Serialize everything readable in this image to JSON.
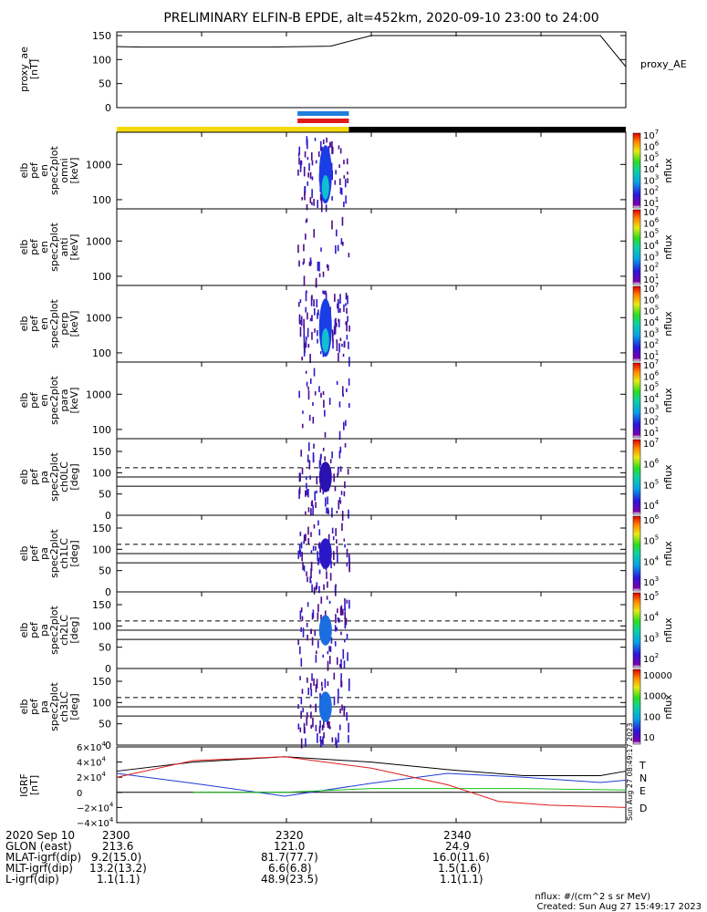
{
  "title": "PRELIMINARY ELFIN-B EPDE, alt=452km, 2020-09-10 23:00 to 24:00",
  "colors": {
    "sci_zone": "#f5d90a",
    "night": "#000000",
    "ascending": "#1f7fdc",
    "descending": "#e01b1b",
    "T": "#000000",
    "N": "#1f3bd6",
    "E": "#16c216",
    "D": "#e01b1b"
  },
  "chart_data": [
    {
      "type": "line",
      "name": "proxy_ae",
      "ylabel": [
        "proxy_ae",
        "[nT]"
      ],
      "ylim": [
        0,
        150
      ],
      "yticks": [
        "150",
        "100",
        "50",
        "0"
      ],
      "legend": "proxy_AE",
      "x": [
        23.0,
        23.05,
        23.15,
        23.3,
        23.42,
        23.5,
        23.65,
        23.8,
        23.88,
        23.95,
        24.0
      ],
      "values": [
        127,
        126,
        126,
        126,
        128,
        150,
        150,
        150,
        150,
        150,
        85
      ]
    },
    {
      "type": "heatmap",
      "name": "pef_en_spec2plot_omni",
      "ylabel": [
        "elb",
        "pef",
        "en",
        "spec2plot",
        "omni",
        "[keV]"
      ],
      "yticks": [
        "1000",
        "100"
      ],
      "colorbar_label": "nflux",
      "colorbar_ticks": [
        "10^1",
        "10^2",
        "10^3",
        "10^4",
        "10^5",
        "10^6",
        "10^7"
      ]
    },
    {
      "type": "heatmap",
      "name": "pef_en_spec2plot_anti",
      "ylabel": [
        "elb",
        "pef",
        "en",
        "spec2plot",
        "anti",
        "[keV]"
      ],
      "yticks": [
        "1000",
        "100"
      ],
      "colorbar_label": "nflux",
      "colorbar_ticks": [
        "10^1",
        "10^2",
        "10^3",
        "10^4",
        "10^5",
        "10^6",
        "10^7"
      ]
    },
    {
      "type": "heatmap",
      "name": "pef_en_spec2plot_perp",
      "ylabel": [
        "elb",
        "pef",
        "en",
        "spec2plot",
        "perp",
        "[keV]"
      ],
      "yticks": [
        "1000",
        "100"
      ],
      "colorbar_label": "nflux",
      "colorbar_ticks": [
        "10^1",
        "10^2",
        "10^3",
        "10^4",
        "10^5",
        "10^6",
        "10^7"
      ]
    },
    {
      "type": "heatmap",
      "name": "pef_en_spec2plot_para",
      "ylabel": [
        "elb",
        "pef",
        "en",
        "spec2plot",
        "para",
        "[keV]"
      ],
      "yticks": [
        "1000",
        "100"
      ],
      "colorbar_label": "nflux",
      "colorbar_ticks": [
        "10^1",
        "10^2",
        "10^3",
        "10^4",
        "10^5",
        "10^6",
        "10^7"
      ]
    },
    {
      "type": "heatmap",
      "name": "pef_pa_spec2plot_ch0LC",
      "ylabel": [
        "elb",
        "pef",
        "pa",
        "spec2plot",
        "ch0LC",
        "[deg]"
      ],
      "yticks": [
        "150",
        "100",
        "50",
        "0"
      ],
      "ylim": [
        0,
        180
      ],
      "colorbar_label": "nflux",
      "colorbar_ticks": [
        "10^4",
        "10^5",
        "10^6",
        "10^7"
      ]
    },
    {
      "type": "heatmap",
      "name": "pef_pa_spec2plot_ch1LC",
      "ylabel": [
        "elb",
        "pef",
        "pa",
        "spec2plot",
        "ch1LC",
        "[deg]"
      ],
      "yticks": [
        "150",
        "100",
        "50",
        "0"
      ],
      "ylim": [
        0,
        180
      ],
      "colorbar_label": "nflux",
      "colorbar_ticks": [
        "10^3",
        "10^4",
        "10^5",
        "10^6"
      ]
    },
    {
      "type": "heatmap",
      "name": "pef_pa_spec2plot_ch2LC",
      "ylabel": [
        "elb",
        "pef",
        "pa",
        "spec2plot",
        "ch2LC",
        "[deg]"
      ],
      "yticks": [
        "150",
        "100",
        "50",
        "0"
      ],
      "ylim": [
        0,
        180
      ],
      "colorbar_label": "nflux",
      "colorbar_ticks": [
        "10^2",
        "10^3",
        "10^4",
        "10^5"
      ]
    },
    {
      "type": "heatmap",
      "name": "pef_pa_spec2plot_ch3LC",
      "ylabel": [
        "elb",
        "pef",
        "pa",
        "spec2plot",
        "ch3LC",
        "[deg]"
      ],
      "yticks": [
        "150",
        "100",
        "50",
        "0"
      ],
      "ylim": [
        0,
        180
      ],
      "colorbar_label": "nflux",
      "colorbar_ticks": [
        "10000",
        "1000",
        "100",
        "10"
      ]
    },
    {
      "type": "line",
      "name": "IGRF",
      "ylabel": [
        "IGRF",
        "[nT]"
      ],
      "ylim": [
        -40000,
        60000
      ],
      "yticks": [
        "6×10^4",
        "4×10^4",
        "2×10^4",
        "0",
        "−2×10^4",
        "−4×10^4"
      ],
      "series": [
        {
          "name": "T",
          "x": [
            23.0,
            23.15,
            23.33,
            23.5,
            23.65,
            23.8,
            23.95,
            24.0
          ],
          "values": [
            28000,
            40000,
            47000,
            40000,
            30000,
            22000,
            22000,
            28000
          ]
        },
        {
          "name": "N",
          "x": [
            23.0,
            23.15,
            23.33,
            23.5,
            23.65,
            23.8,
            23.95,
            24.0
          ],
          "values": [
            25000,
            12000,
            -5000,
            12000,
            25000,
            20000,
            13000,
            16000
          ]
        },
        {
          "name": "E",
          "x": [
            23.15,
            23.33,
            23.5,
            23.65,
            23.8,
            24.0
          ],
          "values": [
            0,
            0,
            5000,
            5000,
            5000,
            3000
          ]
        },
        {
          "name": "D",
          "x": [
            23.0,
            23.15,
            23.33,
            23.5,
            23.65,
            23.75,
            23.85,
            24.0
          ],
          "values": [
            20000,
            42000,
            47000,
            32000,
            10000,
            -12000,
            -17000,
            -20000
          ]
        }
      ]
    }
  ],
  "colorbar_units": "nflux",
  "xticks": {
    "label": "2020 Sep 10",
    "values": [
      "2300",
      "2320",
      "2340"
    ]
  },
  "ephemeris": [
    {
      "label": "GLON (east)",
      "values": [
        "213.6",
        "121.0",
        "24.9"
      ]
    },
    {
      "label": "MLAT-igrf(dip)",
      "values": [
        "9.2(15.0)",
        "81.7(77.7)",
        "16.0(11.6)"
      ]
    },
    {
      "label": "MLT-igrf(dip)",
      "values": [
        "13.2(13.2)",
        "6.6(6.8)",
        "1.5(1.6)"
      ]
    },
    {
      "label": "L-igrf(dip)",
      "values": [
        "1.1(1.1)",
        "48.9(23.5)",
        "1.1(1.1)"
      ]
    }
  ],
  "side_stamp": "Sun Aug 27 08:49:17 2023",
  "footer": {
    "units": "nflux: #/(cm^2 s sr MeV)",
    "created": "Created: Sun Aug 27 15:49:17 2023"
  }
}
